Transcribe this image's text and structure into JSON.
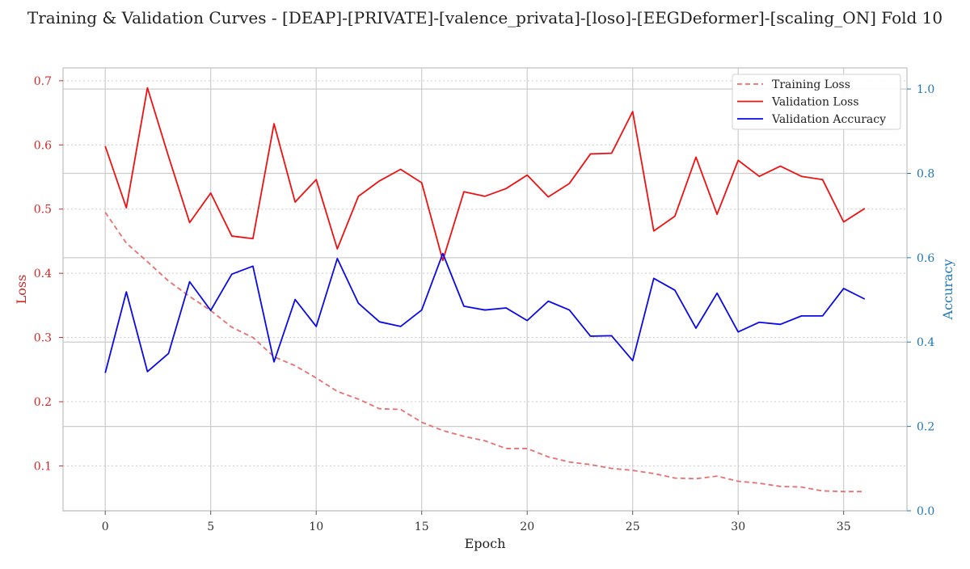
{
  "chart_data": {
    "type": "line",
    "title": "Training & Validation Curves - [DEAP]-[PRIVATE]-[valence_privata]-[loso]-[EEGDeformer]-[scaling_ON] Fold 10",
    "xlabel": "Epoch",
    "ylabel_left": "Loss",
    "ylabel_right": "Accuracy",
    "xlim": [
      -2,
      38
    ],
    "ylim_left": [
      0.03,
      0.72
    ],
    "ylim_right": [
      0.0,
      1.05
    ],
    "xticks": [
      0,
      5,
      10,
      15,
      20,
      25,
      30,
      35
    ],
    "yticks_left": [
      0.1,
      0.2,
      0.3,
      0.4,
      0.5,
      0.6,
      0.7
    ],
    "yticks_right": [
      0.0,
      0.2,
      0.4,
      0.6,
      0.8,
      1.0
    ],
    "grid": true,
    "legend_position": "top-right",
    "x": [
      0,
      1,
      2,
      3,
      4,
      5,
      6,
      7,
      8,
      9,
      10,
      11,
      12,
      13,
      14,
      15,
      16,
      17,
      18,
      19,
      20,
      21,
      22,
      23,
      24,
      25,
      26,
      27,
      28,
      29,
      30,
      31,
      32,
      33,
      34,
      35,
      36
    ],
    "series": [
      {
        "name": "Training Loss",
        "axis": "left",
        "style": "dashed",
        "color": "#e87070",
        "values": [
          0.495,
          0.447,
          0.418,
          0.388,
          0.364,
          0.342,
          0.316,
          0.3,
          0.27,
          0.256,
          0.237,
          0.216,
          0.204,
          0.189,
          0.188,
          0.168,
          0.155,
          0.146,
          0.139,
          0.127,
          0.127,
          0.114,
          0.106,
          0.102,
          0.096,
          0.093,
          0.088,
          0.081,
          0.08,
          0.084,
          0.076,
          0.073,
          0.068,
          0.067,
          0.061,
          0.06,
          0.06
        ]
      },
      {
        "name": "Validation Loss",
        "axis": "left",
        "style": "solid",
        "color": "#ee1111",
        "values": [
          0.598,
          0.502,
          0.689,
          0.582,
          0.479,
          0.525,
          0.458,
          0.454,
          0.633,
          0.511,
          0.546,
          0.438,
          0.52,
          0.544,
          0.562,
          0.541,
          0.42,
          0.527,
          0.52,
          0.532,
          0.553,
          0.519,
          0.54,
          0.586,
          0.587,
          0.652,
          0.466,
          0.489,
          0.581,
          0.492,
          0.576,
          0.551,
          0.567,
          0.551,
          0.546,
          0.48,
          0.501
        ]
      },
      {
        "name": "Validation Accuracy",
        "axis": "right",
        "style": "solid",
        "color": "#0a0ae6",
        "values": [
          0.327,
          0.519,
          0.33,
          0.373,
          0.543,
          0.475,
          0.561,
          0.58,
          0.353,
          0.501,
          0.437,
          0.598,
          0.492,
          0.448,
          0.437,
          0.476,
          0.61,
          0.485,
          0.476,
          0.481,
          0.451,
          0.497,
          0.476,
          0.414,
          0.415,
          0.356,
          0.551,
          0.523,
          0.433,
          0.516,
          0.424,
          0.447,
          0.442,
          0.462,
          0.462,
          0.527,
          0.502
        ]
      }
    ],
    "colors": {
      "left_axis": "#cc2a2a",
      "right_axis": "#1f77b4",
      "grid": "#cccccc",
      "spine": "#c8c8c8"
    }
  }
}
